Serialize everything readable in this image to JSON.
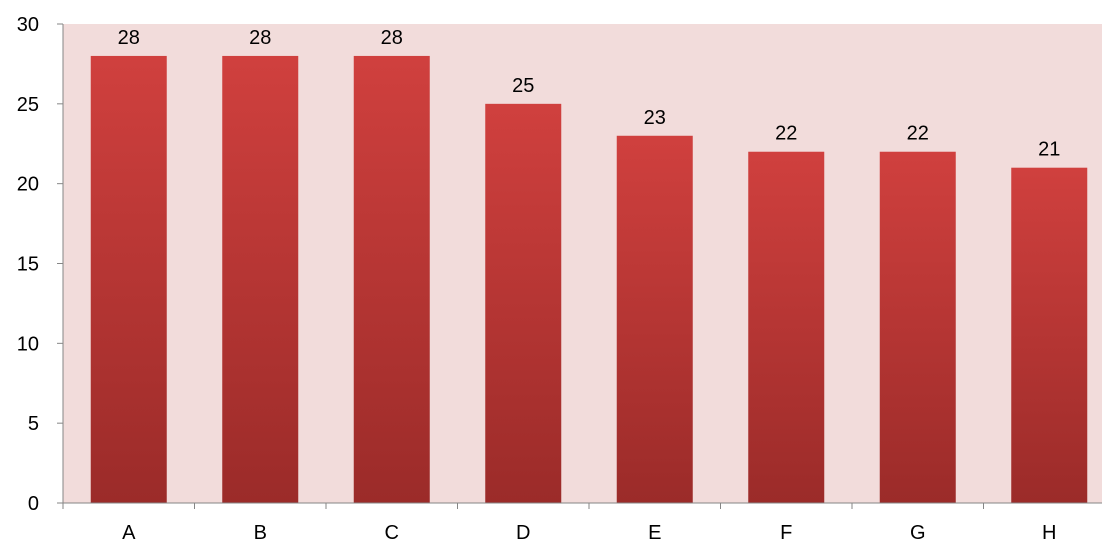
{
  "chart_data": {
    "type": "bar",
    "categories": [
      "A",
      "B",
      "C",
      "D",
      "E",
      "F",
      "G",
      "H"
    ],
    "values": [
      28,
      28,
      28,
      25,
      23,
      22,
      22,
      21
    ],
    "data_labels": [
      "28",
      "28",
      "28",
      "25",
      "23",
      "22",
      "22",
      "21"
    ],
    "ylim": [
      0,
      30
    ],
    "yticks": [
      0,
      5,
      10,
      15,
      20,
      25,
      30
    ],
    "ytick_labels": [
      "0",
      "5",
      "10",
      "15",
      "20",
      "25",
      "30"
    ],
    "grid": false,
    "legend": "none",
    "colors": {
      "plot_background": "#f2dcdb",
      "bar_top": "#d0403e",
      "bar_bottom": "#9b2b29",
      "axis": "#868686"
    }
  }
}
